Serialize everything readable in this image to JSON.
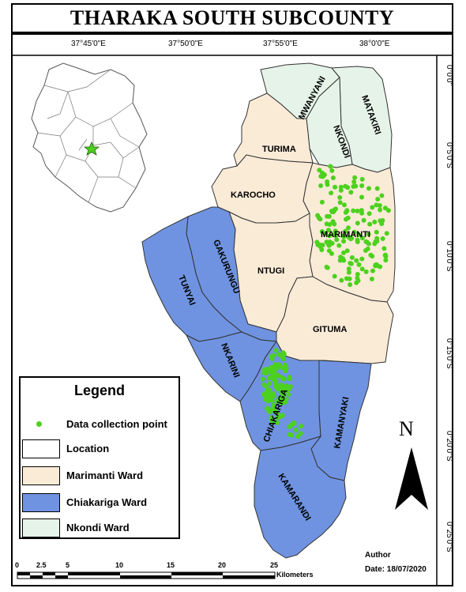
{
  "title": "THARAKA SOUTH SUBCOUNTY",
  "graticule": {
    "longitudes": [
      "37°45'0\"E",
      "37°50'0\"E",
      "37°55'0\"E",
      "38°0'0\"E"
    ],
    "latitudes": [
      "0°0'0\"",
      "0°5'0\"S",
      "0°10'0\"S",
      "0°15'0\"S",
      "0°20'0\"S",
      "0°25'0\"S"
    ]
  },
  "wards": {
    "labels": [
      "MWANYANI",
      "MATAKIRI",
      "NKONDI",
      "TURIMA",
      "KAROCHO",
      "MARIMANTI",
      "GAKURUNGU",
      "TUNYAI",
      "NTUGI",
      "GITUMA",
      "NKARINI",
      "CHIAKARIGA",
      "KAMANYAKI",
      "KAMARANDI"
    ]
  },
  "legend": {
    "title": "Legend",
    "items": [
      {
        "label": "Data collection point",
        "color": "#4cd11e"
      },
      {
        "label": "Location",
        "color": "#ffffff"
      },
      {
        "label": "Marimanti Ward",
        "color": "#faebd7"
      },
      {
        "label": "Chiakariga Ward",
        "color": "#6f93e0"
      },
      {
        "label": "Nkondi Ward",
        "color": "#e6f3e8"
      }
    ]
  },
  "author": {
    "label": "Author",
    "date": "Date: 18/07/2020"
  },
  "scale": {
    "ticks": [
      "0",
      "2.5",
      "5",
      "10",
      "15",
      "20",
      "25"
    ],
    "unit": "Kilometers"
  },
  "north": "N",
  "colors": {
    "marimanti": "#faebd7",
    "chiakariga": "#6f93e0",
    "nkondi": "#e6f3e8",
    "points": "#4cd11e",
    "inset_star": "#4cd11e"
  }
}
